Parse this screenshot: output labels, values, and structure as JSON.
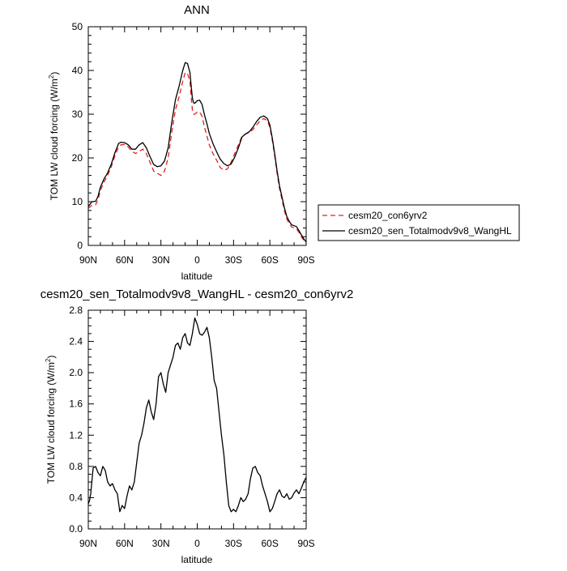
{
  "chart_data": [
    {
      "type": "line",
      "title": "ANN",
      "xlabel": "latitude",
      "ylabel": "TOM LW cloud forcing (W/m",
      "ylabel_sup": "2",
      "ylabel_close": ")",
      "xlim": [
        90,
        -90
      ],
      "ylim": [
        0,
        50
      ],
      "x_ticks": [
        90,
        60,
        30,
        0,
        -30,
        -60,
        -90
      ],
      "x_tick_labels": [
        "90N",
        "60N",
        "30N",
        "0",
        "30S",
        "60S",
        "90S"
      ],
      "y_ticks": [
        0,
        10,
        20,
        30,
        40,
        50
      ],
      "y_tick_labels": [
        "0",
        "10",
        "20",
        "30",
        "40",
        "50"
      ],
      "legend": "right",
      "series": [
        {
          "name": "cesm20_con6yrv2",
          "color": "#e02020",
          "dash": "dashed",
          "x": [
            90,
            87,
            84,
            82,
            80,
            77,
            74,
            71,
            68,
            65,
            63,
            60,
            57,
            54,
            51,
            48,
            45,
            42,
            39,
            36,
            33,
            30,
            27,
            24,
            21,
            18,
            15,
            12,
            10,
            8,
            6,
            5,
            4,
            3,
            2,
            0,
            -2,
            -4,
            -6,
            -8,
            -10,
            -13,
            -16,
            -19,
            -22,
            -25,
            -28,
            -31,
            -34,
            -37,
            -40,
            -43,
            -46,
            -49,
            -52,
            -55,
            -58,
            -60,
            -62,
            -64,
            -66,
            -68,
            -70,
            -72,
            -74,
            -76,
            -78,
            -80,
            -82,
            -84,
            -86,
            -88,
            -90
          ],
          "values": [
            8.5,
            9.2,
            9.3,
            10.5,
            12.5,
            14.5,
            16.0,
            18.0,
            20.5,
            22.5,
            23.0,
            23.1,
            22.5,
            21.5,
            21.0,
            21.5,
            22.0,
            21.0,
            19.0,
            17.0,
            16.5,
            16.0,
            17.0,
            20.0,
            26.0,
            31.0,
            34.0,
            37.5,
            39.5,
            39.3,
            37.5,
            34.0,
            31.0,
            30.0,
            30.0,
            30.5,
            30.5,
            29.5,
            27.0,
            25.0,
            23.0,
            21.0,
            19.5,
            17.8,
            17.2,
            17.5,
            19.0,
            21.0,
            23.0,
            25.0,
            25.5,
            25.8,
            26.5,
            27.5,
            28.5,
            29.0,
            28.5,
            27.0,
            24.0,
            20.5,
            16.5,
            13.0,
            10.5,
            8.0,
            6.0,
            5.0,
            4.2,
            4.0,
            3.8,
            3.0,
            2.0,
            1.2,
            0.5
          ]
        },
        {
          "name": "cesm20_sen_Totalmodv9v8_WangHL",
          "color": "#000000",
          "dash": "solid",
          "x": [
            90,
            87,
            84,
            82,
            80,
            77,
            74,
            71,
            68,
            65,
            63,
            60,
            57,
            54,
            51,
            48,
            45,
            42,
            39,
            36,
            33,
            30,
            27,
            24,
            21,
            18,
            15,
            12,
            10,
            8,
            6,
            5,
            4,
            3,
            2,
            0,
            -2,
            -4,
            -6,
            -8,
            -10,
            -13,
            -16,
            -19,
            -22,
            -25,
            -28,
            -31,
            -34,
            -37,
            -40,
            -43,
            -46,
            -49,
            -52,
            -55,
            -58,
            -60,
            -62,
            -64,
            -66,
            -68,
            -70,
            -72,
            -74,
            -76,
            -78,
            -80,
            -82,
            -84,
            -86,
            -88,
            -90
          ],
          "values": [
            8.9,
            10.0,
            10.1,
            11.2,
            13.3,
            15.2,
            16.6,
            18.6,
            21.2,
            23.3,
            23.6,
            23.5,
            23.0,
            22.0,
            22.0,
            23.0,
            23.5,
            22.3,
            20.3,
            18.5,
            18.0,
            18.2,
            19.3,
            22.3,
            28.2,
            33.3,
            36.4,
            40.0,
            41.8,
            41.6,
            39.5,
            36.5,
            33.7,
            32.6,
            32.5,
            33.1,
            33.2,
            32.2,
            29.8,
            27.8,
            25.6,
            23.3,
            21.4,
            19.7,
            18.7,
            18.2,
            18.6,
            20.2,
            22.3,
            24.8,
            25.5,
            26.0,
            27.0,
            28.3,
            29.3,
            29.6,
            29.0,
            27.5,
            24.5,
            21.0,
            17.0,
            13.6,
            11.1,
            8.6,
            6.6,
            5.5,
            4.7,
            4.5,
            4.3,
            3.4,
            2.4,
            1.5,
            0.8
          ]
        }
      ]
    },
    {
      "type": "line",
      "title": "cesm20_sen_Totalmodv9v8_WangHL - cesm20_con6yrv2",
      "xlabel": "latitude",
      "ylabel": "TOM LW cloud forcing (W/m",
      "ylabel_sup": "2",
      "ylabel_close": ")",
      "xlim": [
        90,
        -90
      ],
      "ylim": [
        0,
        2.8
      ],
      "x_ticks": [
        90,
        60,
        30,
        0,
        -30,
        -60,
        -90
      ],
      "x_tick_labels": [
        "90N",
        "60N",
        "30N",
        "0",
        "30S",
        "60S",
        "90S"
      ],
      "y_ticks": [
        0,
        0.4,
        0.8,
        1.2,
        1.6,
        2.0,
        2.4,
        2.8
      ],
      "y_tick_labels": [
        "0.0",
        "0.4",
        "0.8",
        "1.2",
        "1.6",
        "2.0",
        "2.4",
        "2.8"
      ],
      "series": [
        {
          "color": "#000000",
          "dash": "solid",
          "x": [
            90,
            89,
            88,
            86,
            84,
            82,
            80,
            78,
            76,
            74,
            72,
            70,
            68,
            66,
            64,
            62,
            60,
            58,
            56,
            54,
            52,
            50,
            48,
            46,
            44,
            42,
            40,
            38,
            36,
            34,
            32,
            30,
            28,
            26,
            24,
            22,
            20,
            18,
            16,
            14,
            12,
            10,
            8,
            6,
            4,
            2,
            0,
            -2,
            -4,
            -6,
            -8,
            -10,
            -12,
            -14,
            -16,
            -18,
            -20,
            -22,
            -24,
            -26,
            -28,
            -30,
            -32,
            -34,
            -36,
            -38,
            -40,
            -42,
            -44,
            -46,
            -48,
            -50,
            -52,
            -54,
            -56,
            -58,
            -60,
            -62,
            -64,
            -66,
            -68,
            -70,
            -72,
            -74,
            -76,
            -78,
            -80,
            -82,
            -84,
            -86,
            -88,
            -90
          ],
          "values": [
            0.32,
            0.36,
            0.45,
            0.78,
            0.8,
            0.72,
            0.68,
            0.8,
            0.75,
            0.6,
            0.55,
            0.58,
            0.5,
            0.45,
            0.22,
            0.3,
            0.26,
            0.42,
            0.55,
            0.5,
            0.6,
            0.85,
            1.1,
            1.2,
            1.35,
            1.55,
            1.65,
            1.5,
            1.4,
            1.6,
            1.95,
            2.0,
            1.85,
            1.75,
            2.0,
            2.1,
            2.2,
            2.35,
            2.38,
            2.3,
            2.45,
            2.5,
            2.38,
            2.35,
            2.5,
            2.7,
            2.62,
            2.5,
            2.48,
            2.52,
            2.58,
            2.45,
            2.2,
            1.9,
            1.8,
            1.5,
            1.2,
            0.95,
            0.6,
            0.3,
            0.22,
            0.25,
            0.22,
            0.3,
            0.4,
            0.35,
            0.38,
            0.45,
            0.65,
            0.78,
            0.8,
            0.72,
            0.68,
            0.55,
            0.45,
            0.35,
            0.22,
            0.26,
            0.35,
            0.45,
            0.5,
            0.42,
            0.4,
            0.45,
            0.38,
            0.4,
            0.46,
            0.5,
            0.45,
            0.52,
            0.6,
            0.66
          ]
        }
      ]
    }
  ]
}
